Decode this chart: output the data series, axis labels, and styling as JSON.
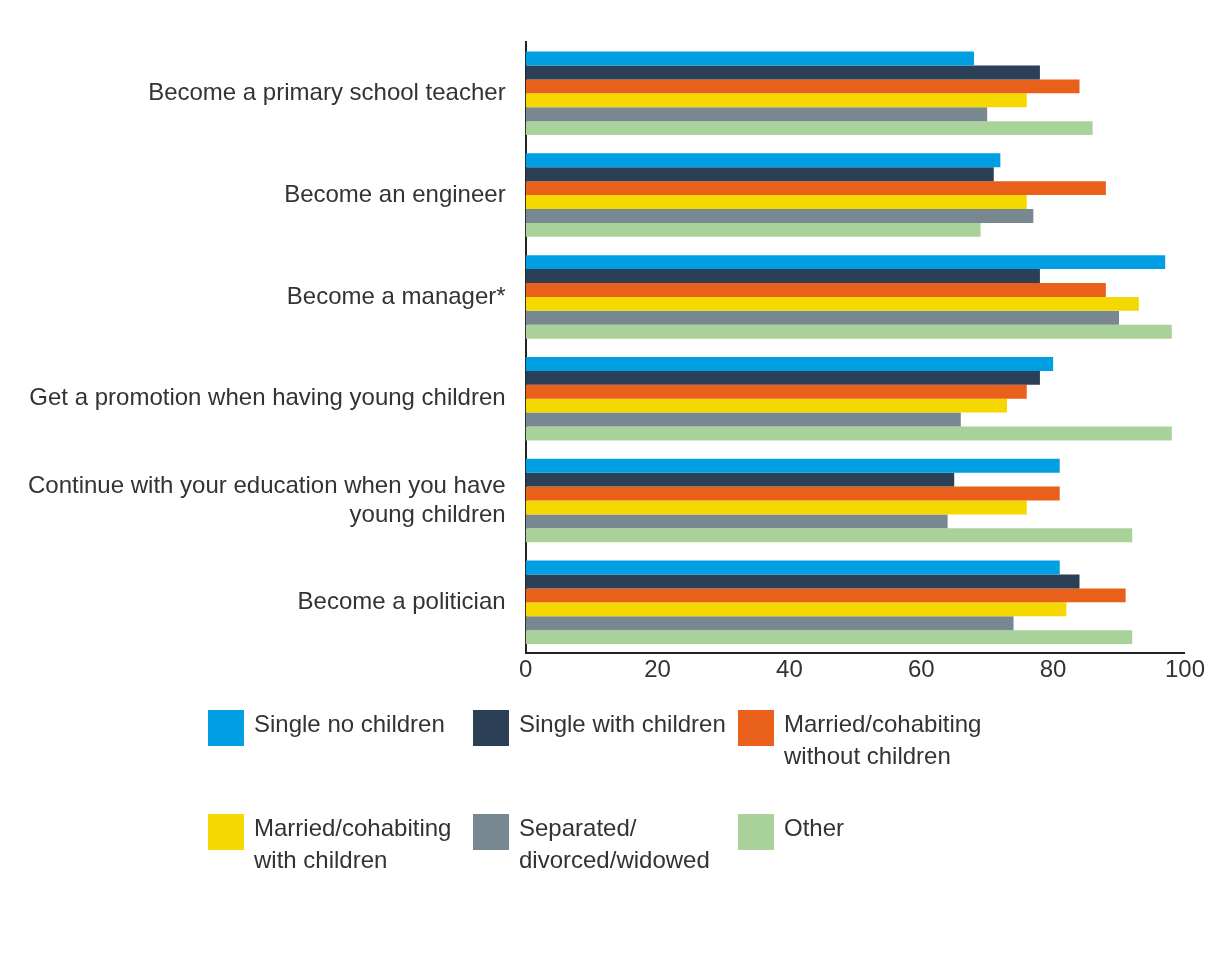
{
  "chart_data": {
    "type": "bar",
    "orientation": "horizontal",
    "categories": [
      "Become a primary school teacher",
      "Become an engineer",
      "Become a manager*",
      "Get a promotion when having young children",
      "Continue with your education when you have young children",
      "Become a politician"
    ],
    "series": [
      {
        "name": "Single no children",
        "color": "#009fe3",
        "values": [
          68,
          72,
          97,
          80,
          81,
          81
        ]
      },
      {
        "name": "Single with children",
        "color": "#2b3f56",
        "values": [
          78,
          71,
          78,
          78,
          65,
          84
        ]
      },
      {
        "name": "Married/cohabiting without children",
        "color": "#e8601a",
        "values": [
          84,
          88,
          88,
          76,
          81,
          91
        ]
      },
      {
        "name": "Married/cohabiting with children",
        "color": "#f5d800",
        "values": [
          76,
          76,
          93,
          73,
          76,
          82
        ]
      },
      {
        "name": "Separated/ divorced/widowed",
        "color": "#778891",
        "values": [
          70,
          77,
          90,
          66,
          64,
          74
        ]
      },
      {
        "name": "Other",
        "color": "#a8d29a",
        "values": [
          86,
          69,
          98,
          98,
          92,
          92
        ]
      }
    ],
    "xlim": [
      0,
      100
    ],
    "xticks": [
      0,
      20,
      40,
      60,
      80,
      100
    ],
    "grid": false,
    "legend": "bottom"
  }
}
